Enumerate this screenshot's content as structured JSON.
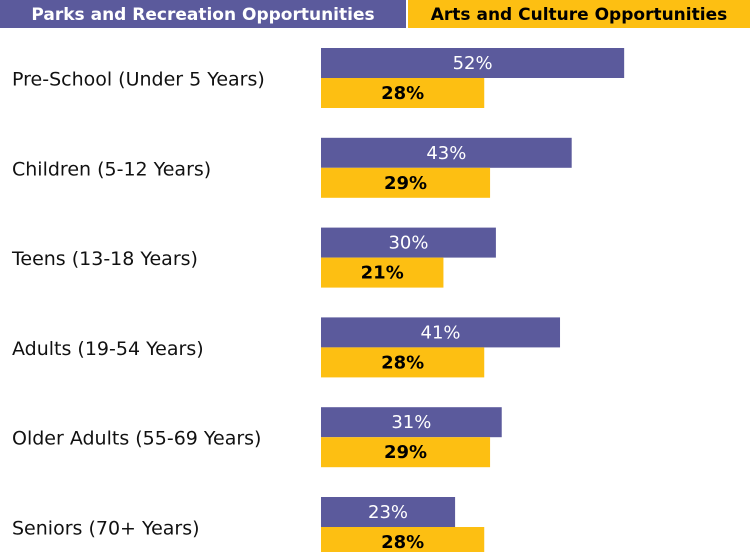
{
  "chart_data": {
    "type": "bar",
    "categories": [
      "Pre-School (Under 5 Years)",
      "Children (5-12 Years)",
      "Teens (13-18 Years)",
      "Adults (19-54 Years)",
      "Older Adults (55-69 Years)",
      "Seniors (70+ Years)"
    ],
    "series": [
      {
        "name": "Parks and Recreation Opportunities",
        "color": "#5b5a9c",
        "values": [
          52,
          43,
          30,
          41,
          31,
          23
        ],
        "value_labels": [
          "52%",
          "43%",
          "30%",
          "41%",
          "31%",
          "23%"
        ]
      },
      {
        "name": "Arts and Culture Opportunities",
        "color": "#fdbf12",
        "values": [
          28,
          29,
          21,
          28,
          29,
          28
        ],
        "value_labels": [
          "28%",
          "29%",
          "21%",
          "28%",
          "29%",
          "28%"
        ]
      }
    ]
  }
}
